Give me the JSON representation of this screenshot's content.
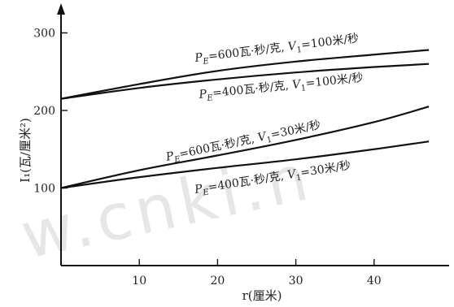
{
  "chart_data": {
    "type": "line",
    "title": "",
    "xlabel": "r(厘米)",
    "ylabel": "I₁(瓦/厘米²)",
    "x_ticks": [
      "10",
      "20",
      "30",
      "40"
    ],
    "y_ticks": [
      "100",
      "200",
      "300"
    ],
    "xlim": [
      0,
      50
    ],
    "ylim": [
      0,
      310
    ],
    "grid": false,
    "series": [
      {
        "name": "P_E=600瓦·秒/克, V₁=100米/秒",
        "x": [
          0,
          10,
          20,
          30,
          40,
          47
        ],
        "y": [
          215,
          234,
          251,
          263,
          272,
          278
        ]
      },
      {
        "name": "P_E=400瓦·秒/克, V₁=100米/秒",
        "x": [
          0,
          10,
          20,
          30,
          40,
          47
        ],
        "y": [
          215,
          229,
          240,
          249,
          256,
          260
        ]
      },
      {
        "name": "P_E=600瓦·秒/克, V₁=30米/秒",
        "x": [
          0,
          10,
          20,
          30,
          40,
          47
        ],
        "y": [
          100,
          123,
          142,
          162,
          185,
          205
        ]
      },
      {
        "name": "P_E=400瓦·秒/克, V₁=30米/秒",
        "x": [
          0,
          10,
          20,
          30,
          40,
          47
        ],
        "y": [
          100,
          114,
          126,
          137,
          150,
          160
        ]
      }
    ],
    "labels": [
      {
        "parts": [
          "P",
          "E",
          "=600瓦·秒/克, ",
          "V",
          "1",
          "=100米/秒"
        ]
      },
      {
        "parts": [
          "P",
          "E",
          "=400瓦·秒/克, ",
          "V",
          "1",
          "=100米/秒"
        ]
      },
      {
        "parts": [
          "P",
          "E",
          "=600瓦·秒/克, ",
          "V",
          "1",
          "=30米/秒"
        ]
      },
      {
        "parts": [
          "P",
          "E",
          "=400瓦·秒/克, ",
          "V",
          "1",
          "=30米/秒"
        ]
      }
    ],
    "watermark": "w.cnki.n"
  }
}
